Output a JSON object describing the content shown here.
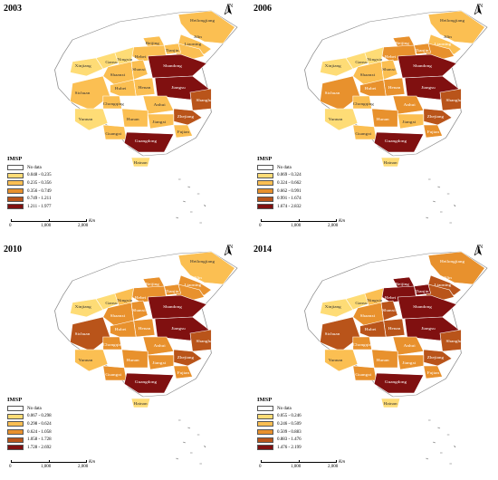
{
  "panels": [
    {
      "year": "2003",
      "legend_title": "IMSP",
      "legend": [
        {
          "label": "No data",
          "color": "#ffffff"
        },
        {
          "label": "0.048 - 0.235",
          "color": "#fedc76"
        },
        {
          "label": "0.235 - 0.356",
          "color": "#fbbf52"
        },
        {
          "label": "0.356 - 0.749",
          "color": "#e8912d"
        },
        {
          "label": "0.749 - 1.211",
          "color": "#b9541a"
        },
        {
          "label": "1.211 - 1.977",
          "color": "#801010"
        }
      ],
      "region_classes": {
        "Heilongjiang": 2,
        "Jilin": 2,
        "Liaoning": 2,
        "Beijing": 2,
        "Tianjin": 2,
        "Hebei": 2,
        "Xinjiang": 1,
        "Gansu": 1,
        "Ningxia": 1,
        "Shaanxi": 2,
        "Shanxi": 2,
        "Shandong": 5,
        "Henan": 2,
        "Jiangsu": 5,
        "Anhui": 2,
        "Shanghai": 4,
        "Sichuan": 2,
        "Chongqing": 2,
        "Hubei": 2,
        "Zhejiang": 4,
        "Hunan": 2,
        "Jiangxi": 2,
        "Fujian": 2,
        "Yunnan": 1,
        "Guangxi": 2,
        "Guangdong": 5,
        "Hainan": 1
      }
    },
    {
      "year": "2006",
      "legend_title": "IMSP",
      "legend": [
        {
          "label": "No data",
          "color": "#ffffff"
        },
        {
          "label": "0.069 - 0.324",
          "color": "#fedc76"
        },
        {
          "label": "0.324 - 0.662",
          "color": "#fbbf52"
        },
        {
          "label": "0.662 - 0.991",
          "color": "#e8912d"
        },
        {
          "label": "0.991 - 1.674",
          "color": "#b9541a"
        },
        {
          "label": "1.674 - 2.832",
          "color": "#801010"
        }
      ],
      "region_classes": {
        "Heilongjiang": 2,
        "Jilin": 2,
        "Liaoning": 3,
        "Beijing": 3,
        "Tianjin": 3,
        "Hebei": 3,
        "Xinjiang": 1,
        "Gansu": 1,
        "Ningxia": 1,
        "Shaanxi": 2,
        "Shanxi": 2,
        "Shandong": 5,
        "Henan": 3,
        "Jiangsu": 5,
        "Anhui": 3,
        "Shanghai": 4,
        "Sichuan": 3,
        "Chongqing": 2,
        "Hubei": 3,
        "Zhejiang": 4,
        "Hunan": 3,
        "Jiangxi": 2,
        "Fujian": 3,
        "Yunnan": 1,
        "Guangxi": 2,
        "Guangdong": 5,
        "Hainan": 1
      }
    },
    {
      "year": "2010",
      "legend_title": "IMSP",
      "legend": [
        {
          "label": "No data",
          "color": "#ffffff"
        },
        {
          "label": "0.067 - 0.298",
          "color": "#fedc76"
        },
        {
          "label": "0.298 - 0.624",
          "color": "#fbbf52"
        },
        {
          "label": "0.624 - 1.058",
          "color": "#e8912d"
        },
        {
          "label": "1.058 - 1.728",
          "color": "#b9541a"
        },
        {
          "label": "1.728 - 2.692",
          "color": "#801010"
        }
      ],
      "region_classes": {
        "Heilongjiang": 2,
        "Jilin": 3,
        "Liaoning": 3,
        "Beijing": 3,
        "Tianjin": 3,
        "Hebei": 3,
        "Xinjiang": 1,
        "Gansu": 1,
        "Ningxia": 2,
        "Shaanxi": 3,
        "Shanxi": 3,
        "Shandong": 5,
        "Henan": 3,
        "Jiangsu": 5,
        "Anhui": 3,
        "Shanghai": 4,
        "Sichuan": 4,
        "Chongqing": 3,
        "Hubei": 3,
        "Zhejiang": 4,
        "Hunan": 3,
        "Jiangxi": 3,
        "Fujian": 3,
        "Yunnan": 2,
        "Guangxi": 3,
        "Guangdong": 5,
        "Hainan": 1
      }
    },
    {
      "year": "2014",
      "legend_title": "IMSP",
      "legend": [
        {
          "label": "No data",
          "color": "#ffffff"
        },
        {
          "label": "0.055 - 0.246",
          "color": "#fedc76"
        },
        {
          "label": "0.246 - 0.509",
          "color": "#fbbf52"
        },
        {
          "label": "0.509 - 0.883",
          "color": "#e8912d"
        },
        {
          "label": "0.883 - 1.476",
          "color": "#b9541a"
        },
        {
          "label": "1.476 - 2.199",
          "color": "#801010"
        }
      ],
      "region_classes": {
        "Heilongjiang": 3,
        "Jilin": 4,
        "Liaoning": 4,
        "Beijing": 5,
        "Tianjin": 5,
        "Hebei": 5,
        "Xinjiang": 1,
        "Gansu": 1,
        "Ningxia": 2,
        "Shaanxi": 3,
        "Shanxi": 4,
        "Shandong": 5,
        "Henan": 4,
        "Jiangsu": 5,
        "Anhui": 3,
        "Shanghai": 4,
        "Sichuan": 4,
        "Chongqing": 3,
        "Hubei": 4,
        "Zhejiang": 4,
        "Hunan": 3,
        "Jiangxi": 3,
        "Fujian": 3,
        "Yunnan": 2,
        "Guangxi": 3,
        "Guangdong": 5,
        "Hainan": 1
      }
    }
  ],
  "region_labels": {
    "Heilongjiang": "Heilongjiang",
    "Jilin": "Jilin",
    "Liaoning": "Liaoning",
    "Beijing": "Beijing",
    "Tianjin": "Tianjin",
    "Hebei": "Hebei",
    "Xinjiang": "Xinjiang",
    "Gansu": "Gansu",
    "Ningxia": "Ningxia",
    "Shaanxi": "Shaanxi",
    "Shanxi": "Shanxi",
    "Shandong": "Shandong",
    "Henan": "Henan",
    "Jiangsu": "Jiangsu",
    "Anhui": "Anhui",
    "Shanghai": "Shanghai",
    "Sichuan": "Sichuan",
    "Chongqing": "Chongqing",
    "Hubei": "Hubei",
    "Zhejiang": "Zhejiang",
    "Hunan": "Hunan",
    "Jiangxi": "Jiangxi",
    "Fujian": "Fujian",
    "Yunnan": "Yunnan",
    "Guangxi": "Guangxi",
    "Guangdong": "Guangdong",
    "Hainan": "Hainan"
  },
  "scale": {
    "ticks": [
      "0",
      "1,000",
      "2,000"
    ],
    "unit": "Km"
  },
  "north_label": "N"
}
